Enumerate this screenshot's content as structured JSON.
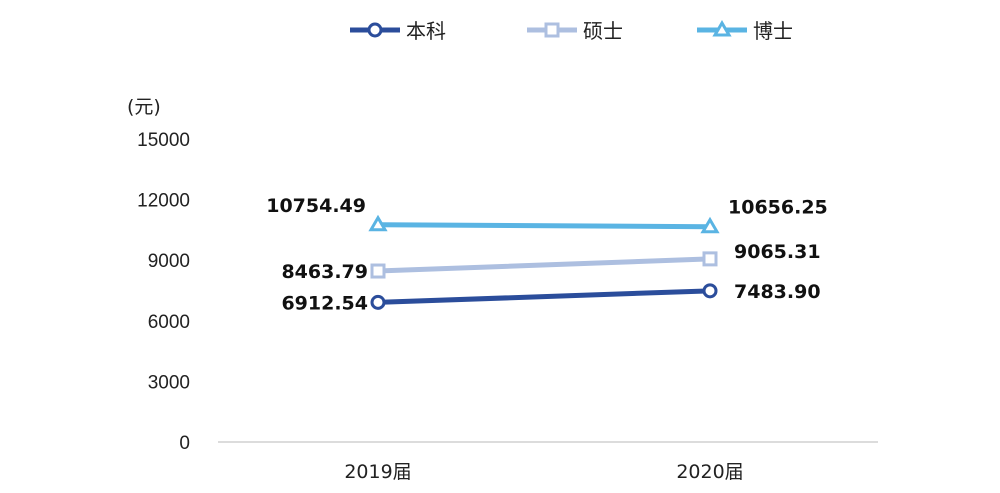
{
  "chart_data": {
    "type": "line",
    "categories": [
      "2019届",
      "2020届"
    ],
    "ylabel": "(元)",
    "ylim": [
      0,
      15000
    ],
    "yticks": [
      0,
      3000,
      6000,
      9000,
      12000,
      15000
    ],
    "grid": false,
    "legend_position": "top",
    "series": [
      {
        "name": "本科",
        "values": [
          6912.54,
          7483.9
        ],
        "labels": [
          "6912.54",
          "7483.90"
        ],
        "color": "#2b4d9b",
        "marker": "circle"
      },
      {
        "name": "硕士",
        "values": [
          8463.79,
          9065.31
        ],
        "labels": [
          "8463.79",
          "9065.31"
        ],
        "color": "#adbfe0",
        "marker": "square"
      },
      {
        "name": "博士",
        "values": [
          10754.49,
          10656.25
        ],
        "labels": [
          "10754.49",
          "10656.25"
        ],
        "color": "#5ab4e3",
        "marker": "triangle"
      }
    ]
  }
}
